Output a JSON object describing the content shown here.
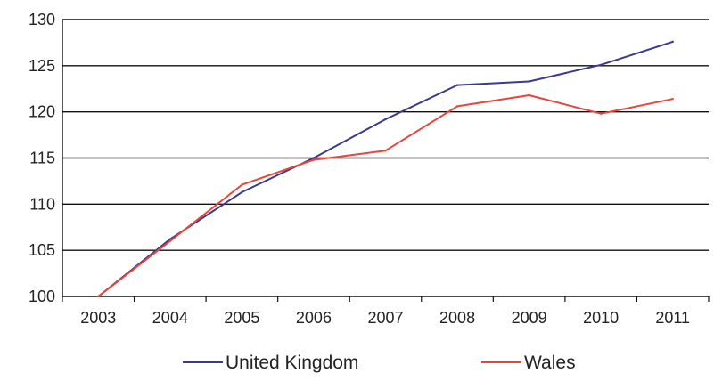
{
  "chart_data": {
    "type": "line",
    "categories": [
      "2003",
      "2004",
      "2005",
      "2006",
      "2007",
      "2008",
      "2009",
      "2010",
      "2011"
    ],
    "ylim": [
      100,
      130
    ],
    "yticks": [
      100,
      105,
      110,
      115,
      120,
      125,
      130
    ],
    "grid": true,
    "legend_position": "bottom",
    "series": [
      {
        "name": "United Kingdom",
        "color": "#3a3a8c",
        "values": [
          100,
          106.2,
          111.3,
          115.0,
          119.2,
          122.9,
          123.3,
          125.1,
          127.6
        ]
      },
      {
        "name": "Wales",
        "color": "#e8453c",
        "values": [
          100,
          106.0,
          112.1,
          114.8,
          115.8,
          120.6,
          121.8,
          119.8,
          121.4
        ]
      }
    ]
  }
}
